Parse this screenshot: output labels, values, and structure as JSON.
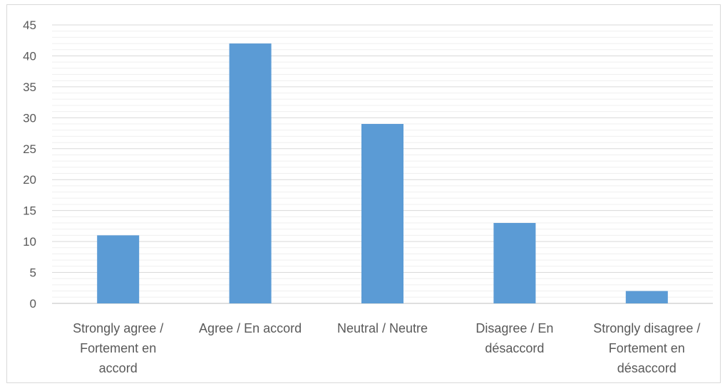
{
  "chart_data": {
    "type": "bar",
    "categories": [
      [
        "Strongly agree /",
        "Fortement en",
        "accord"
      ],
      [
        "Agree / En accord"
      ],
      [
        "Neutral / Neutre"
      ],
      [
        "Disagree / En",
        "désaccord"
      ],
      [
        "Strongly disagree /",
        "Fortement en",
        "désaccord"
      ]
    ],
    "values": [
      11,
      42,
      29,
      13,
      2
    ],
    "ylim": [
      0,
      45
    ],
    "y_ticks": [
      0,
      5,
      10,
      15,
      20,
      25,
      30,
      35,
      40,
      45
    ],
    "grid": true,
    "minor_grid": true,
    "title": "",
    "xlabel": "",
    "ylabel": "",
    "colors": {
      "bar": "#5b9bd5",
      "major_grid": "#d9d9d9",
      "minor_grid": "#efefef",
      "text": "#595959"
    }
  }
}
